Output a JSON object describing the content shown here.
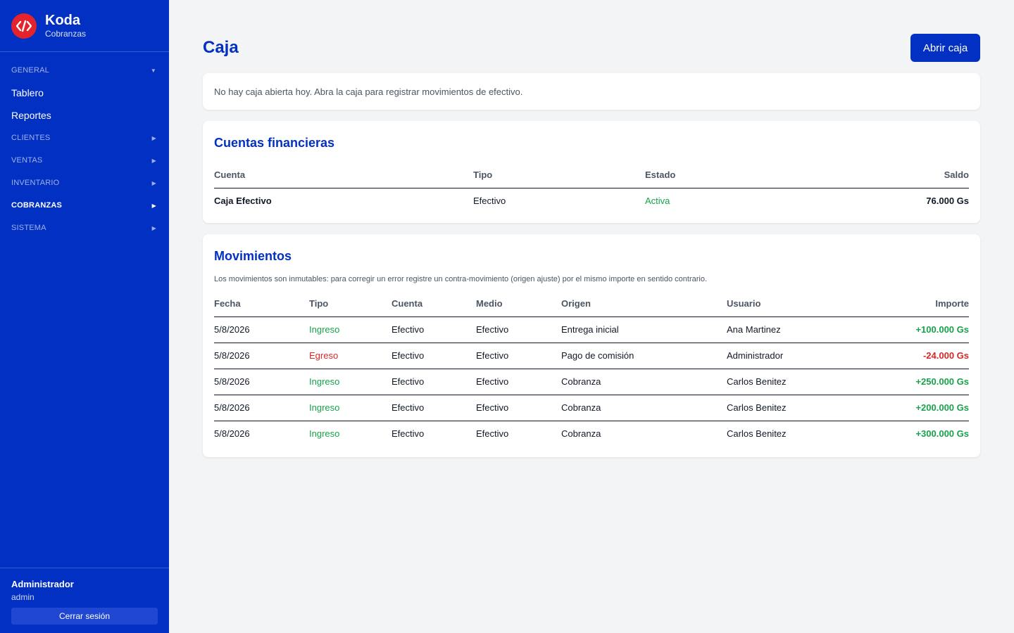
{
  "brand": {
    "name": "Koda",
    "subtitle": "Cobranzas"
  },
  "nav": {
    "general": "GENERAL",
    "tablero": "Tablero",
    "reportes": "Reportes",
    "clientes": "CLIENTES",
    "ventas": "VENTAS",
    "inventario": "INVENTARIO",
    "cobranzas": "COBRANZAS",
    "sistema": "SISTEMA"
  },
  "user": {
    "name": "Administrador",
    "role": "admin",
    "logout_label": "Cerrar sesión"
  },
  "page": {
    "title": "Caja",
    "open_button": "Abrir caja"
  },
  "notice": "No hay caja abierta hoy. Abra la caja para registrar movimientos de efectivo.",
  "accounts": {
    "title": "Cuentas financieras",
    "headers": {
      "cuenta": "Cuenta",
      "tipo": "Tipo",
      "estado": "Estado",
      "saldo": "Saldo"
    },
    "rows": [
      {
        "cuenta": "Caja Efectivo",
        "tipo": "Efectivo",
        "estado": "Activa",
        "saldo": "76.000 Gs"
      }
    ]
  },
  "movements": {
    "title": "Movimientos",
    "note": "Los movimientos son inmutables: para corregir un error registre un contra-movimiento (origen ajuste) por el mismo importe en sentido contrario.",
    "headers": {
      "fecha": "Fecha",
      "tipo": "Tipo",
      "cuenta": "Cuenta",
      "medio": "Medio",
      "origen": "Origen",
      "usuario": "Usuario",
      "importe": "Importe"
    },
    "rows": [
      {
        "fecha": "5/8/2026",
        "tipo": "Ingreso",
        "cuenta": "Efectivo",
        "medio": "Efectivo",
        "origen": "Entrega inicial",
        "usuario": "Ana Martinez",
        "importe": "+100.000 Gs"
      },
      {
        "fecha": "5/8/2026",
        "tipo": "Egreso",
        "cuenta": "Efectivo",
        "medio": "Efectivo",
        "origen": "Pago de comisión",
        "usuario": "Administrador",
        "importe": "-24.000 Gs"
      },
      {
        "fecha": "5/8/2026",
        "tipo": "Ingreso",
        "cuenta": "Efectivo",
        "medio": "Efectivo",
        "origen": "Cobranza",
        "usuario": "Carlos Benitez",
        "importe": "+250.000 Gs"
      },
      {
        "fecha": "5/8/2026",
        "tipo": "Ingreso",
        "cuenta": "Efectivo",
        "medio": "Efectivo",
        "origen": "Cobranza",
        "usuario": "Carlos Benitez",
        "importe": "+200.000 Gs"
      },
      {
        "fecha": "5/8/2026",
        "tipo": "Ingreso",
        "cuenta": "Efectivo",
        "medio": "Efectivo",
        "origen": "Cobranza",
        "usuario": "Carlos Benitez",
        "importe": "+300.000 Gs"
      }
    ]
  },
  "colors": {
    "sidebar": "#0230c3",
    "accent": "#0230c3",
    "logo": "#e5232c",
    "positive": "#16a34a",
    "negative": "#dc2626"
  },
  "icons": {
    "logo": "code-icon",
    "collapse": "chevron-down-icon",
    "expand": "chevron-right-icon"
  }
}
